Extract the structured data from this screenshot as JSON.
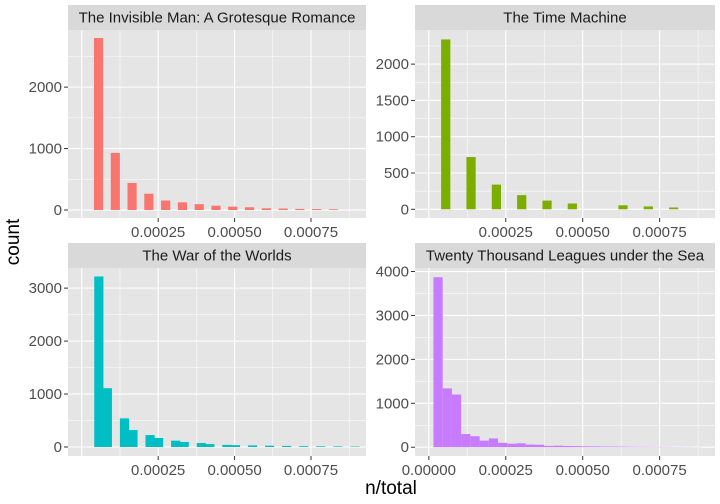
{
  "chart_data": {
    "type": "bar",
    "xlabel": "n/total",
    "ylabel": "count",
    "theme": {
      "panel_bg": "#e5e5e5",
      "strip_bg": "#d9d9d9",
      "grid_color": "#ffffff"
    },
    "bin_width": 3e-05,
    "panels": [
      {
        "title": "The Invisible Man: A Grotesque Romance",
        "color": "#F8766D",
        "xlim": [
          -4.5e-05,
          0.00093
        ],
        "ylim": [
          -130,
          2930
        ],
        "yticks": [
          0,
          1000,
          2000
        ],
        "ytick_labels": [
          "0",
          "1000",
          "2000"
        ],
        "xticks": [
          0.00025,
          0.0005,
          0.00075
        ],
        "xtick_labels": [
          "0.00025",
          "0.00050",
          "0.00075"
        ],
        "bins": [
          {
            "x": 5.49e-05,
            "count": 2800
          },
          {
            "x": 0.0001098,
            "count": 930
          },
          {
            "x": 0.0001647,
            "count": 440
          },
          {
            "x": 0.0002196,
            "count": 265
          },
          {
            "x": 0.0002745,
            "count": 155
          },
          {
            "x": 0.0003294,
            "count": 125
          },
          {
            "x": 0.0003843,
            "count": 95
          },
          {
            "x": 0.0004392,
            "count": 70
          },
          {
            "x": 0.0004941,
            "count": 55
          },
          {
            "x": 0.000549,
            "count": 45
          },
          {
            "x": 0.0006039,
            "count": 28
          },
          {
            "x": 0.0006588,
            "count": 24
          },
          {
            "x": 0.0007137,
            "count": 18
          },
          {
            "x": 0.0007686,
            "count": 15
          },
          {
            "x": 0.0008235,
            "count": 12
          }
        ]
      },
      {
        "title": "The Time Machine",
        "color": "#7CAE00",
        "xlim": [
          -4.5e-05,
          0.00093
        ],
        "ylim": [
          -120,
          2470
        ],
        "yticks": [
          0,
          500,
          1000,
          1500,
          2000
        ],
        "ytick_labels": [
          "0",
          "500",
          "1000",
          "1500",
          "2000"
        ],
        "xticks": [
          0.00025,
          0.0005,
          0.00075
        ],
        "xtick_labels": [
          "0.00025",
          "0.00050",
          "0.00075"
        ],
        "bins": [
          {
            "x": 5.49e-05,
            "count": 2340
          },
          {
            "x": 0.0001372,
            "count": 720
          },
          {
            "x": 0.0002195,
            "count": 340
          },
          {
            "x": 0.0003018,
            "count": 195
          },
          {
            "x": 0.0003841,
            "count": 120
          },
          {
            "x": 0.0004664,
            "count": 80
          },
          {
            "x": 0.000631,
            "count": 55
          },
          {
            "x": 0.0007133,
            "count": 40
          },
          {
            "x": 0.0007956,
            "count": 25
          }
        ]
      },
      {
        "title": "The War of the Worlds",
        "color": "#00BFC4",
        "xlim": [
          -4.5e-05,
          0.00093
        ],
        "ylim": [
          -170,
          3380
        ],
        "yticks": [
          0,
          1000,
          2000,
          3000
        ],
        "ytick_labels": [
          "0",
          "1000",
          "2000",
          "3000"
        ],
        "xticks": [
          0.00025,
          0.0005,
          0.00075
        ],
        "xtick_labels": [
          "0.00025",
          "0.00050",
          "0.00075"
        ],
        "bins": [
          {
            "x": 5.59e-05,
            "count": 3220
          },
          {
            "x": 8.38e-05,
            "count": 1110
          },
          {
            "x": 0.0001397,
            "count": 540
          },
          {
            "x": 0.0001676,
            "count": 320
          },
          {
            "x": 0.0002235,
            "count": 225
          },
          {
            "x": 0.0002514,
            "count": 170
          },
          {
            "x": 0.0003073,
            "count": 120
          },
          {
            "x": 0.0003352,
            "count": 95
          },
          {
            "x": 0.0003911,
            "count": 75
          },
          {
            "x": 0.000419,
            "count": 55
          },
          {
            "x": 0.0004749,
            "count": 40
          },
          {
            "x": 0.0005028,
            "count": 35
          },
          {
            "x": 0.0005587,
            "count": 30
          },
          {
            "x": 0.0006145,
            "count": 25
          },
          {
            "x": 0.0006704,
            "count": 20
          },
          {
            "x": 0.0007263,
            "count": 16
          },
          {
            "x": 0.0007822,
            "count": 12
          },
          {
            "x": 0.000838,
            "count": 10
          },
          {
            "x": 0.0008939,
            "count": 8
          }
        ]
      },
      {
        "title": "Twenty Thousand Leagues under the Sea",
        "color": "#C77CFF",
        "xlim": [
          -4.5e-05,
          0.00093
        ],
        "ylim": [
          -200,
          4080
        ],
        "yticks": [
          0,
          1000,
          2000,
          3000,
          4000
        ],
        "ytick_labels": [
          "0",
          "1000",
          "2000",
          "3000",
          "4000"
        ],
        "xticks": [
          0,
          0.00025,
          0.0005,
          0.00075
        ],
        "xtick_labels": [
          "0.00000",
          "0.00025",
          "0.00050",
          "0.00075"
        ],
        "bins": [
          {
            "x": 3e-05,
            "count": 3870
          },
          {
            "x": 6e-05,
            "count": 1340
          },
          {
            "x": 9e-05,
            "count": 1200
          },
          {
            "x": 0.00012,
            "count": 300
          },
          {
            "x": 0.00015,
            "count": 250
          },
          {
            "x": 0.00018,
            "count": 150
          },
          {
            "x": 0.00021,
            "count": 200
          },
          {
            "x": 0.00024,
            "count": 100
          },
          {
            "x": 0.00027,
            "count": 80
          },
          {
            "x": 0.0003,
            "count": 90
          },
          {
            "x": 0.00033,
            "count": 60
          },
          {
            "x": 0.00036,
            "count": 55
          },
          {
            "x": 0.00039,
            "count": 30
          },
          {
            "x": 0.00042,
            "count": 35
          },
          {
            "x": 0.00045,
            "count": 28
          },
          {
            "x": 0.00048,
            "count": 25
          },
          {
            "x": 0.00051,
            "count": 20
          },
          {
            "x": 0.00054,
            "count": 18
          },
          {
            "x": 0.00057,
            "count": 15
          },
          {
            "x": 0.0006,
            "count": 14
          },
          {
            "x": 0.00063,
            "count": 12
          },
          {
            "x": 0.00066,
            "count": 10
          },
          {
            "x": 0.00069,
            "count": 9
          },
          {
            "x": 0.00072,
            "count": 8
          },
          {
            "x": 0.00075,
            "count": 7
          },
          {
            "x": 0.00078,
            "count": 6
          },
          {
            "x": 0.00081,
            "count": 5
          },
          {
            "x": 0.00084,
            "count": 4
          },
          {
            "x": 0.00087,
            "count": 3
          }
        ]
      }
    ]
  }
}
